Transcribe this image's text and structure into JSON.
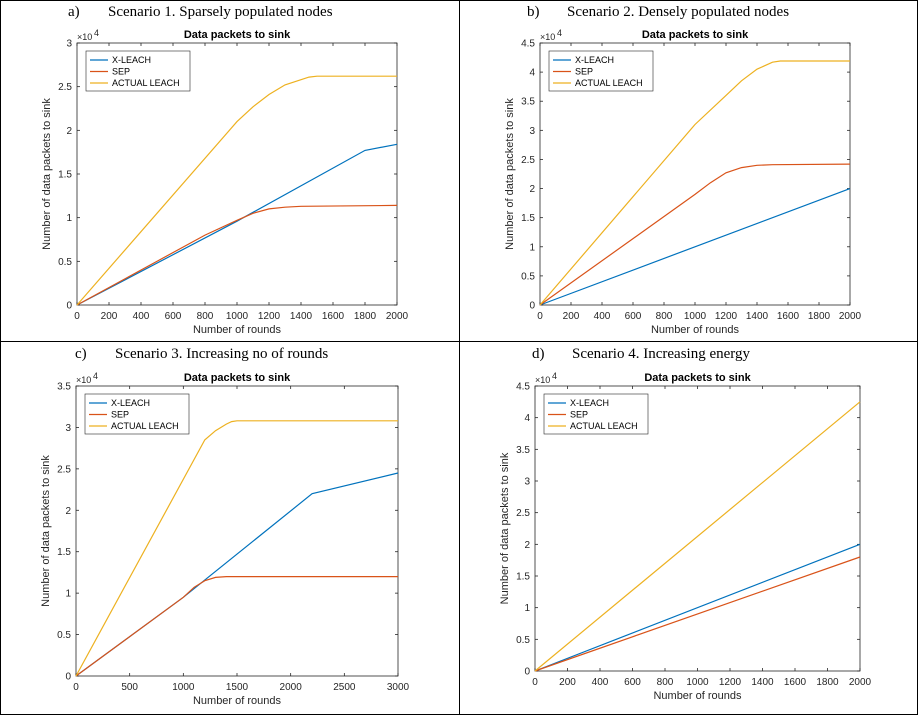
{
  "colors": {
    "x_leach": "#0072BD",
    "sep": "#D95319",
    "actual_leach": "#EDB120"
  },
  "captions": [
    {
      "letter": "a)",
      "text": "Scenario 1. Sparsely populated nodes"
    },
    {
      "letter": "b)",
      "text": "Scenario 2. Densely populated nodes"
    },
    {
      "letter": "c)",
      "text": "Scenario 3. Increasing no of rounds"
    },
    {
      "letter": "d)",
      "text": "Scenario 4. Increasing energy"
    }
  ],
  "chart_data": [
    {
      "type": "line",
      "title": "Data packets to sink",
      "xlabel": "Number of rounds",
      "ylabel": "Number of data packets to sink",
      "exponent_label": "×10",
      "exponent_power": "4",
      "xlim": [
        0,
        2000
      ],
      "ylim": [
        0,
        3
      ],
      "xticks": [
        0,
        200,
        400,
        600,
        800,
        1000,
        1200,
        1400,
        1600,
        1800,
        2000
      ],
      "xtick_labels": [
        "0",
        "200",
        "400",
        "600",
        "800",
        "1000",
        "1200",
        "1400",
        "1600",
        "1800",
        "2000"
      ],
      "yticks": [
        0,
        0.5,
        1,
        1.5,
        2,
        2.5,
        3
      ],
      "ytick_labels": [
        "0",
        "0.5",
        "1",
        "1.5",
        "2",
        "2.5",
        "3"
      ],
      "legend_location": "top-left",
      "series": [
        {
          "name": "X-LEACH",
          "color_key": "x_leach",
          "x": [
            0,
            1000,
            1800,
            2000
          ],
          "y": [
            0,
            0.96,
            1.77,
            1.84
          ]
        },
        {
          "name": "SEP",
          "color_key": "sep",
          "x": [
            0,
            800,
            1000,
            1100,
            1200,
            1300,
            1400,
            2000
          ],
          "y": [
            0,
            0.8,
            0.97,
            1.05,
            1.1,
            1.12,
            1.13,
            1.14
          ]
        },
        {
          "name": "ACTUAL LEACH",
          "color_key": "actual_leach",
          "x": [
            0,
            1000,
            1100,
            1200,
            1300,
            1400,
            1450,
            1500,
            2000
          ],
          "y": [
            0,
            2.1,
            2.27,
            2.41,
            2.52,
            2.58,
            2.61,
            2.62,
            2.62
          ]
        }
      ]
    },
    {
      "type": "line",
      "title": "Data packets to sink",
      "xlabel": "Number of rounds",
      "ylabel": "Number of data packets to sink",
      "exponent_label": "×10",
      "exponent_power": "4",
      "xlim": [
        0,
        2000
      ],
      "ylim": [
        0,
        4.5
      ],
      "xticks": [
        0,
        200,
        400,
        600,
        800,
        1000,
        1200,
        1400,
        1600,
        1800,
        2000
      ],
      "xtick_labels": [
        "0",
        "200",
        "400",
        "600",
        "800",
        "1000",
        "1200",
        "1400",
        "1600",
        "1800",
        "2000"
      ],
      "yticks": [
        0,
        0.5,
        1,
        1.5,
        2,
        2.5,
        3,
        3.5,
        4,
        4.5
      ],
      "ytick_labels": [
        "0",
        "0.5",
        "1",
        "1.5",
        "2",
        "2.5",
        "3",
        "3.5",
        "4",
        "4.5"
      ],
      "legend_location": "top-left",
      "series": [
        {
          "name": "X-LEACH",
          "color_key": "x_leach",
          "x": [
            0,
            2000
          ],
          "y": [
            0,
            2.0
          ]
        },
        {
          "name": "SEP",
          "color_key": "sep",
          "x": [
            0,
            1000,
            1100,
            1200,
            1300,
            1400,
            1500,
            2000
          ],
          "y": [
            0,
            1.9,
            2.1,
            2.27,
            2.36,
            2.4,
            2.41,
            2.42
          ]
        },
        {
          "name": "ACTUAL LEACH",
          "color_key": "actual_leach",
          "x": [
            0,
            1000,
            1200,
            1300,
            1400,
            1500,
            1550,
            2000
          ],
          "y": [
            0,
            3.1,
            3.6,
            3.85,
            4.05,
            4.17,
            4.19,
            4.19
          ]
        }
      ]
    },
    {
      "type": "line",
      "title": "Data packets to sink",
      "xlabel": "Number of rounds",
      "ylabel": "Number of data packets to sink",
      "exponent_label": "×10",
      "exponent_power": "4",
      "xlim": [
        0,
        3000
      ],
      "ylim": [
        0,
        3.5
      ],
      "xticks": [
        0,
        500,
        1000,
        1500,
        2000,
        2500,
        3000
      ],
      "xtick_labels": [
        "0",
        "500",
        "1000",
        "1500",
        "2000",
        "2500",
        "3000"
      ],
      "yticks": [
        0,
        0.5,
        1,
        1.5,
        2,
        2.5,
        3,
        3.5
      ],
      "ytick_labels": [
        "0",
        "0.5",
        "1",
        "1.5",
        "2",
        "2.5",
        "3",
        "3.5"
      ],
      "legend_location": "top-left",
      "series": [
        {
          "name": "X-LEACH",
          "color_key": "x_leach",
          "x": [
            0,
            1000,
            2200,
            3000
          ],
          "y": [
            0,
            0.95,
            2.2,
            2.45
          ]
        },
        {
          "name": "SEP",
          "color_key": "sep",
          "x": [
            0,
            1000,
            1100,
            1200,
            1300,
            1400,
            1500,
            3000
          ],
          "y": [
            0,
            0.95,
            1.07,
            1.15,
            1.19,
            1.2,
            1.2,
            1.2
          ]
        },
        {
          "name": "ACTUAL LEACH",
          "color_key": "actual_leach",
          "x": [
            0,
            1200,
            1300,
            1400,
            1450,
            1500,
            3000
          ],
          "y": [
            0,
            2.85,
            2.96,
            3.04,
            3.07,
            3.08,
            3.08
          ]
        }
      ]
    },
    {
      "type": "line",
      "title": "Data packets to sink",
      "xlabel": "Number of rounds",
      "ylabel": "Number of data packets to sink",
      "exponent_label": "×10",
      "exponent_power": "4",
      "xlim": [
        0,
        2000
      ],
      "ylim": [
        0,
        4.5
      ],
      "xticks": [
        0,
        200,
        400,
        600,
        800,
        1000,
        1200,
        1400,
        1600,
        1800,
        2000
      ],
      "xtick_labels": [
        "0",
        "200",
        "400",
        "600",
        "800",
        "1000",
        "1200",
        "1400",
        "1600",
        "1800",
        "2000"
      ],
      "yticks": [
        0,
        0.5,
        1,
        1.5,
        2,
        2.5,
        3,
        3.5,
        4,
        4.5
      ],
      "ytick_labels": [
        "0",
        "0.5",
        "1",
        "1.5",
        "2",
        "2.5",
        "3",
        "3.5",
        "4",
        "4.5"
      ],
      "legend_location": "top-left",
      "series": [
        {
          "name": "X-LEACH",
          "color_key": "x_leach",
          "x": [
            0,
            2000
          ],
          "y": [
            0,
            2.0
          ]
        },
        {
          "name": "SEP",
          "color_key": "sep",
          "x": [
            0,
            2000
          ],
          "y": [
            0,
            1.8
          ]
        },
        {
          "name": "ACTUAL LEACH",
          "color_key": "actual_leach",
          "x": [
            0,
            2000
          ],
          "y": [
            0,
            4.25
          ]
        }
      ]
    }
  ]
}
